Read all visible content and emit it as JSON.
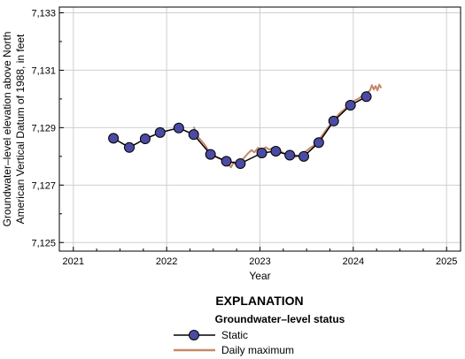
{
  "chart_data": {
    "type": "line",
    "xlabel": "Year",
    "ylabel_line1": "Groundwater–level elevation above North",
    "ylabel_line2": "American Vertical Datum of 1988, in feet",
    "xlim": [
      2020.85,
      2025.15
    ],
    "ylim": [
      7124.7,
      7133.2
    ],
    "x_ticks": [
      {
        "value": 2021,
        "label": "2021"
      },
      {
        "value": 2022,
        "label": "2022"
      },
      {
        "value": 2023,
        "label": "2023"
      },
      {
        "value": 2024,
        "label": "2024"
      },
      {
        "value": 2025,
        "label": "2025"
      }
    ],
    "y_ticks": [
      {
        "value": 7125,
        "label": "7,125"
      },
      {
        "value": 7127,
        "label": "7,127"
      },
      {
        "value": 7129,
        "label": "7,129"
      },
      {
        "value": 7131,
        "label": "7,131"
      },
      {
        "value": 7133,
        "label": "7,133"
      }
    ],
    "legend": {
      "title": "EXPLANATION",
      "subtitle": "Groundwater–level status",
      "placement": "bottom-center"
    },
    "series": [
      {
        "name": "Static",
        "kind": "line-markers",
        "color": "#000000",
        "marker_color": "#4b4ba3",
        "points": [
          [
            2021.43,
            7128.63
          ],
          [
            2021.6,
            7128.31
          ],
          [
            2021.77,
            7128.61
          ],
          [
            2021.93,
            7128.83
          ],
          [
            2022.13,
            7128.99
          ],
          [
            2022.29,
            7128.76
          ],
          [
            2022.47,
            7128.07
          ],
          [
            2022.64,
            7127.83
          ],
          [
            2022.79,
            7127.75
          ],
          [
            2023.02,
            7128.12
          ],
          [
            2023.17,
            7128.18
          ],
          [
            2023.32,
            7128.04
          ],
          [
            2023.47,
            7128.0
          ],
          [
            2023.63,
            7128.48
          ],
          [
            2023.79,
            7129.23
          ],
          [
            2023.97,
            7129.78
          ],
          [
            2024.14,
            7130.08
          ]
        ]
      },
      {
        "name": "Daily maximum",
        "kind": "line",
        "color": "#c8876a",
        "points": [
          [
            2022.29,
            7129.03
          ],
          [
            2022.33,
            7128.7
          ],
          [
            2022.37,
            7128.55
          ],
          [
            2022.41,
            7128.4
          ],
          [
            2022.45,
            7128.2
          ],
          [
            2022.49,
            7128.05
          ],
          [
            2022.53,
            7127.98
          ],
          [
            2022.57,
            7127.92
          ],
          [
            2022.61,
            7127.86
          ],
          [
            2022.65,
            7127.76
          ],
          [
            2022.69,
            7127.62
          ],
          [
            2022.72,
            7127.8
          ],
          [
            2022.75,
            7127.68
          ],
          [
            2022.79,
            7127.8
          ],
          [
            2022.83,
            7127.95
          ],
          [
            2022.87,
            7128.1
          ],
          [
            2022.91,
            7128.22
          ],
          [
            2022.94,
            7128.14
          ],
          [
            2022.98,
            7128.3
          ],
          [
            2023.02,
            7128.21
          ],
          [
            2023.06,
            7128.32
          ],
          [
            2023.1,
            7128.24
          ],
          [
            2023.14,
            7128.3
          ],
          [
            2023.18,
            7128.22
          ],
          [
            2023.22,
            7128.18
          ],
          [
            2023.26,
            7128.1
          ],
          [
            2023.3,
            7128.05
          ],
          [
            2023.34,
            7128.02
          ],
          [
            2023.38,
            7127.98
          ],
          [
            2023.42,
            7128.02
          ],
          [
            2023.46,
            7128.1
          ],
          [
            2023.5,
            7128.2
          ],
          [
            2023.54,
            7128.3
          ],
          [
            2023.58,
            7128.38
          ],
          [
            2023.62,
            7128.55
          ],
          [
            2023.66,
            7128.7
          ],
          [
            2023.7,
            7128.88
          ],
          [
            2023.74,
            7129.05
          ],
          [
            2023.78,
            7129.2
          ],
          [
            2023.82,
            7129.38
          ],
          [
            2023.86,
            7129.52
          ],
          [
            2023.9,
            7129.62
          ],
          [
            2023.94,
            7129.74
          ],
          [
            2023.98,
            7129.86
          ],
          [
            2024.02,
            7129.95
          ],
          [
            2024.06,
            7130.02
          ],
          [
            2024.1,
            7130.12
          ],
          [
            2024.14,
            7130.2
          ],
          [
            2024.18,
            7130.3
          ],
          [
            2024.2,
            7130.48
          ],
          [
            2024.22,
            7130.33
          ],
          [
            2024.24,
            7130.45
          ],
          [
            2024.26,
            7130.3
          ],
          [
            2024.28,
            7130.5
          ],
          [
            2024.3,
            7130.38
          ]
        ]
      }
    ]
  }
}
